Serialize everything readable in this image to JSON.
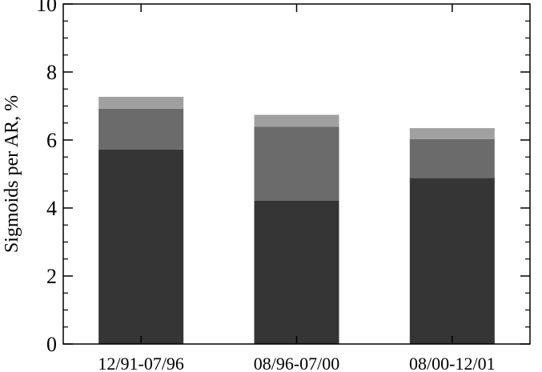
{
  "chart_data": {
    "type": "bar",
    "stacked": true,
    "categories": [
      "12/91-07/96",
      "08/96-07/00",
      "08/00-12/01"
    ],
    "series": [
      {
        "color": "#353535",
        "values": [
          5.72,
          4.22,
          4.88
        ]
      },
      {
        "color": "#6b6b6b",
        "values": [
          1.2,
          2.17,
          1.15
        ]
      },
      {
        "color": "#a0a0a0",
        "values": [
          0.35,
          0.35,
          0.32
        ]
      }
    ],
    "title": "",
    "xlabel": "",
    "ylabel": "Sigmoids per AR, %",
    "ylim": [
      0,
      10
    ],
    "yticks": [
      0,
      2,
      4,
      6,
      8,
      10
    ],
    "grid": false
  }
}
